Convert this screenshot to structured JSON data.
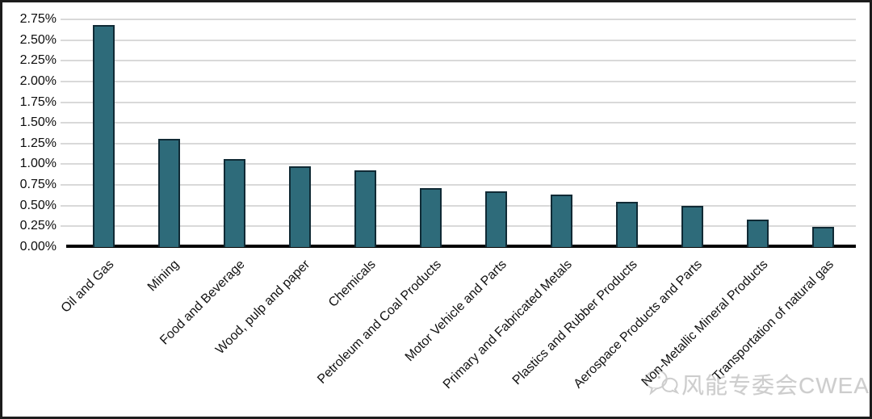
{
  "chart_data": {
    "type": "bar",
    "title": "",
    "xlabel": "",
    "ylabel": "",
    "categories": [
      "Oil and Gas",
      "Mining",
      "Food and Beverage",
      "Wood, pulp and paper",
      "Chemicals",
      "Petroleum and Coal Products",
      "Motor Vehicle and Parts",
      "Primary and Fabricated Metals",
      "Plastics and Rubber Products",
      "Aerospace Products and Parts",
      "Non-Metallic Mineral Products",
      "Transportation of natural gas"
    ],
    "values": [
      2.68,
      1.31,
      1.06,
      0.98,
      0.93,
      0.71,
      0.67,
      0.63,
      0.55,
      0.5,
      0.33,
      0.24
    ],
    "ylim": [
      0,
      2.75
    ],
    "ytick_step": 0.25,
    "ytick_labels": [
      "0.00%",
      "0.25%",
      "0.50%",
      "0.75%",
      "1.00%",
      "1.25%",
      "1.50%",
      "1.75%",
      "2.00%",
      "2.25%",
      "2.50%",
      "2.75%"
    ],
    "grid": true,
    "legend": "none",
    "bar_color": "#2e6b7a",
    "bar_border_color": "#102a35",
    "gridline_color": "#d9d9d9",
    "axis_color": "#050505"
  },
  "watermark": {
    "icon": "wechat-icon",
    "text": "风能专委会CWEA",
    "color": "#cdcdcd"
  }
}
